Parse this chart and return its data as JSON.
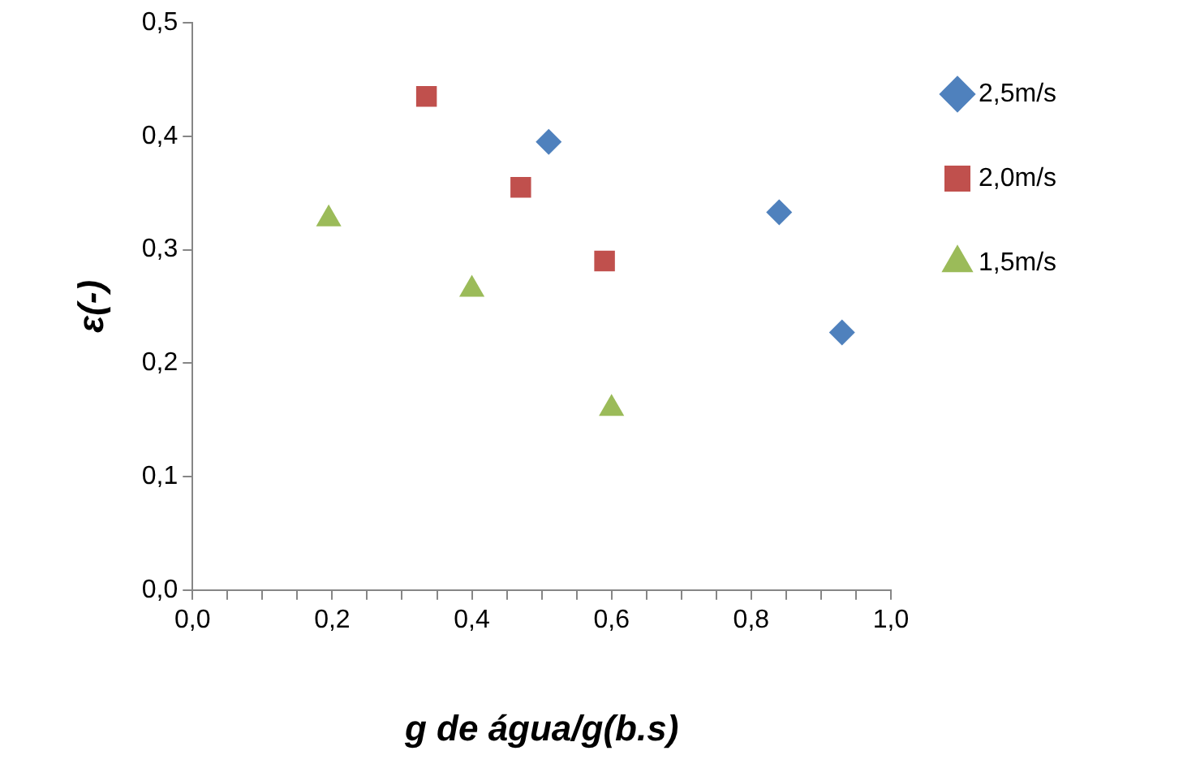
{
  "chart_data": {
    "type": "scatter",
    "xlabel": "g de água/g(b.s)",
    "ylabel": "ε(-)",
    "xlim": [
      0,
      1
    ],
    "ylim": [
      0,
      0.5
    ],
    "xticks": [
      {
        "value": 0,
        "label": "0,0"
      },
      {
        "value": 0.05,
        "label": null
      },
      {
        "value": 0.1,
        "label": null
      },
      {
        "value": 0.15,
        "label": null
      },
      {
        "value": 0.2,
        "label": "0,2"
      },
      {
        "value": 0.25,
        "label": null
      },
      {
        "value": 0.3,
        "label": null
      },
      {
        "value": 0.35,
        "label": null
      },
      {
        "value": 0.4,
        "label": "0,4"
      },
      {
        "value": 0.45,
        "label": null
      },
      {
        "value": 0.5,
        "label": null
      },
      {
        "value": 0.55,
        "label": null
      },
      {
        "value": 0.6,
        "label": "0,6"
      },
      {
        "value": 0.65,
        "label": null
      },
      {
        "value": 0.7,
        "label": null
      },
      {
        "value": 0.75,
        "label": null
      },
      {
        "value": 0.8,
        "label": "0,8"
      },
      {
        "value": 0.85,
        "label": null
      },
      {
        "value": 0.9,
        "label": null
      },
      {
        "value": 0.95,
        "label": null
      },
      {
        "value": 1,
        "label": "1,0"
      }
    ],
    "yticks": [
      {
        "value": 0,
        "label": "0,0"
      },
      {
        "value": 0.1,
        "label": "0,1"
      },
      {
        "value": 0.2,
        "label": "0,2"
      },
      {
        "value": 0.3,
        "label": "0,3"
      },
      {
        "value": 0.4,
        "label": "0,4"
      },
      {
        "value": 0.5,
        "label": "0,5"
      }
    ],
    "grid": false,
    "legend": "right",
    "series": [
      {
        "name": "2,5m/s",
        "color": "#4f81bd",
        "marker": "diamond",
        "x": [
          0.51,
          0.84,
          0.93
        ],
        "values": [
          0.395,
          0.333,
          0.227
        ]
      },
      {
        "name": "2,0m/s",
        "color": "#c0504d",
        "marker": "square",
        "x": [
          0.335,
          0.47,
          0.59
        ],
        "values": [
          0.435,
          0.355,
          0.29
        ]
      },
      {
        "name": "1,5m/s",
        "color": "#9bbb59",
        "marker": "triangle",
        "x": [
          0.195,
          0.4,
          0.6
        ],
        "values": [
          0.327,
          0.265,
          0.16
        ]
      }
    ]
  }
}
